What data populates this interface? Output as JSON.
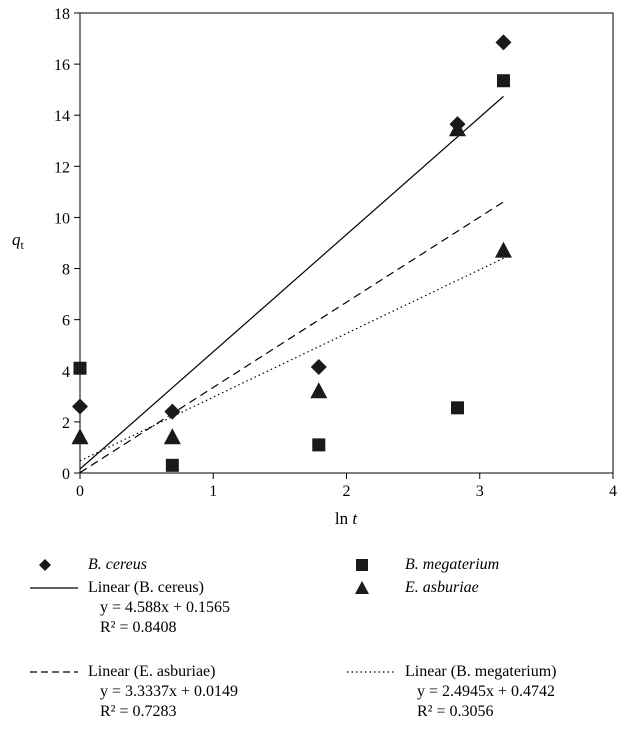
{
  "chart_data": {
    "type": "scatter",
    "xlabel": "ln t",
    "ylabel": "q_t",
    "xlim": [
      0,
      4
    ],
    "ylim": [
      0,
      18
    ],
    "xticks": [
      "0",
      "1",
      "2",
      "3",
      "4"
    ],
    "yticks": [
      "0",
      "2",
      "4",
      "6",
      "8",
      "10",
      "12",
      "14",
      "16",
      "18"
    ],
    "grid": false,
    "legend_position": "bottom",
    "series": [
      {
        "name": "B. cereus",
        "marker": "diamond",
        "x": [
          0,
          0.693,
          1.792,
          2.833,
          3.178
        ],
        "y": [
          2.6,
          2.4,
          4.15,
          13.65,
          16.85
        ]
      },
      {
        "name": "B. megaterium",
        "marker": "square",
        "x": [
          0,
          0.693,
          1.792,
          2.833,
          3.178
        ],
        "y": [
          4.1,
          0.3,
          1.1,
          2.55,
          15.35
        ]
      },
      {
        "name": "E. asburiae",
        "marker": "triangle",
        "x": [
          0,
          0.693,
          1.792,
          2.833,
          3.178
        ],
        "y": [
          1.4,
          1.4,
          3.2,
          13.45,
          8.7
        ]
      }
    ],
    "trendlines": [
      {
        "name": "Linear (B. cereus)",
        "dash": "solid",
        "slope": 4.588,
        "intercept": 0.1565,
        "equation": "y = 4.588x + 0.1565",
        "r2": "R² = 0.8408",
        "x_range": [
          0,
          3.178
        ]
      },
      {
        "name": "Linear (E. asburiae)",
        "dash": "dashed",
        "slope": 3.3337,
        "intercept": 0.0149,
        "equation": "y = 3.3337x + 0.0149",
        "r2": "R² = 0.7283",
        "x_range": [
          0,
          3.178
        ]
      },
      {
        "name": "Linear (B. megaterium)",
        "dash": "dotted",
        "slope": 2.4945,
        "intercept": 0.4742,
        "equation": "y = 2.4945x + 0.4742",
        "r2": "R² = 0.3056",
        "x_range": [
          0,
          3.178
        ]
      }
    ]
  }
}
